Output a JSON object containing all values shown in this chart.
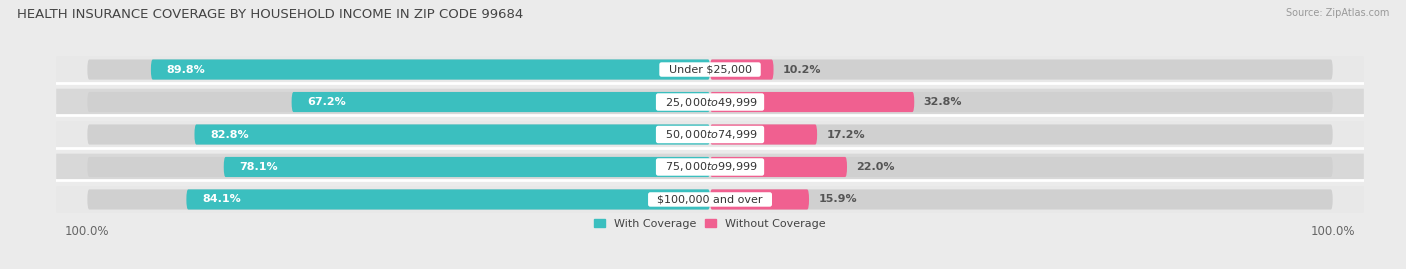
{
  "title": "HEALTH INSURANCE COVERAGE BY HOUSEHOLD INCOME IN ZIP CODE 99684",
  "source": "Source: ZipAtlas.com",
  "categories": [
    "Under $25,000",
    "$25,000 to $49,999",
    "$50,000 to $74,999",
    "$75,000 to $99,999",
    "$100,000 and over"
  ],
  "with_coverage": [
    89.8,
    67.2,
    82.8,
    78.1,
    84.1
  ],
  "without_coverage": [
    10.2,
    32.8,
    17.2,
    22.0,
    15.9
  ],
  "color_with": "#3bbfbf",
  "color_without": "#f06090",
  "row_colors": [
    "#e8e8e8",
    "#d8d8d8",
    "#e8e8e8",
    "#d8d8d8",
    "#e8e8e8"
  ],
  "bg_color": "#ebebeb",
  "legend_labels": [
    "With Coverage",
    "Without Coverage"
  ],
  "title_fontsize": 9.5,
  "label_fontsize": 8,
  "tick_fontsize": 8.5,
  "pct_fontsize": 8
}
